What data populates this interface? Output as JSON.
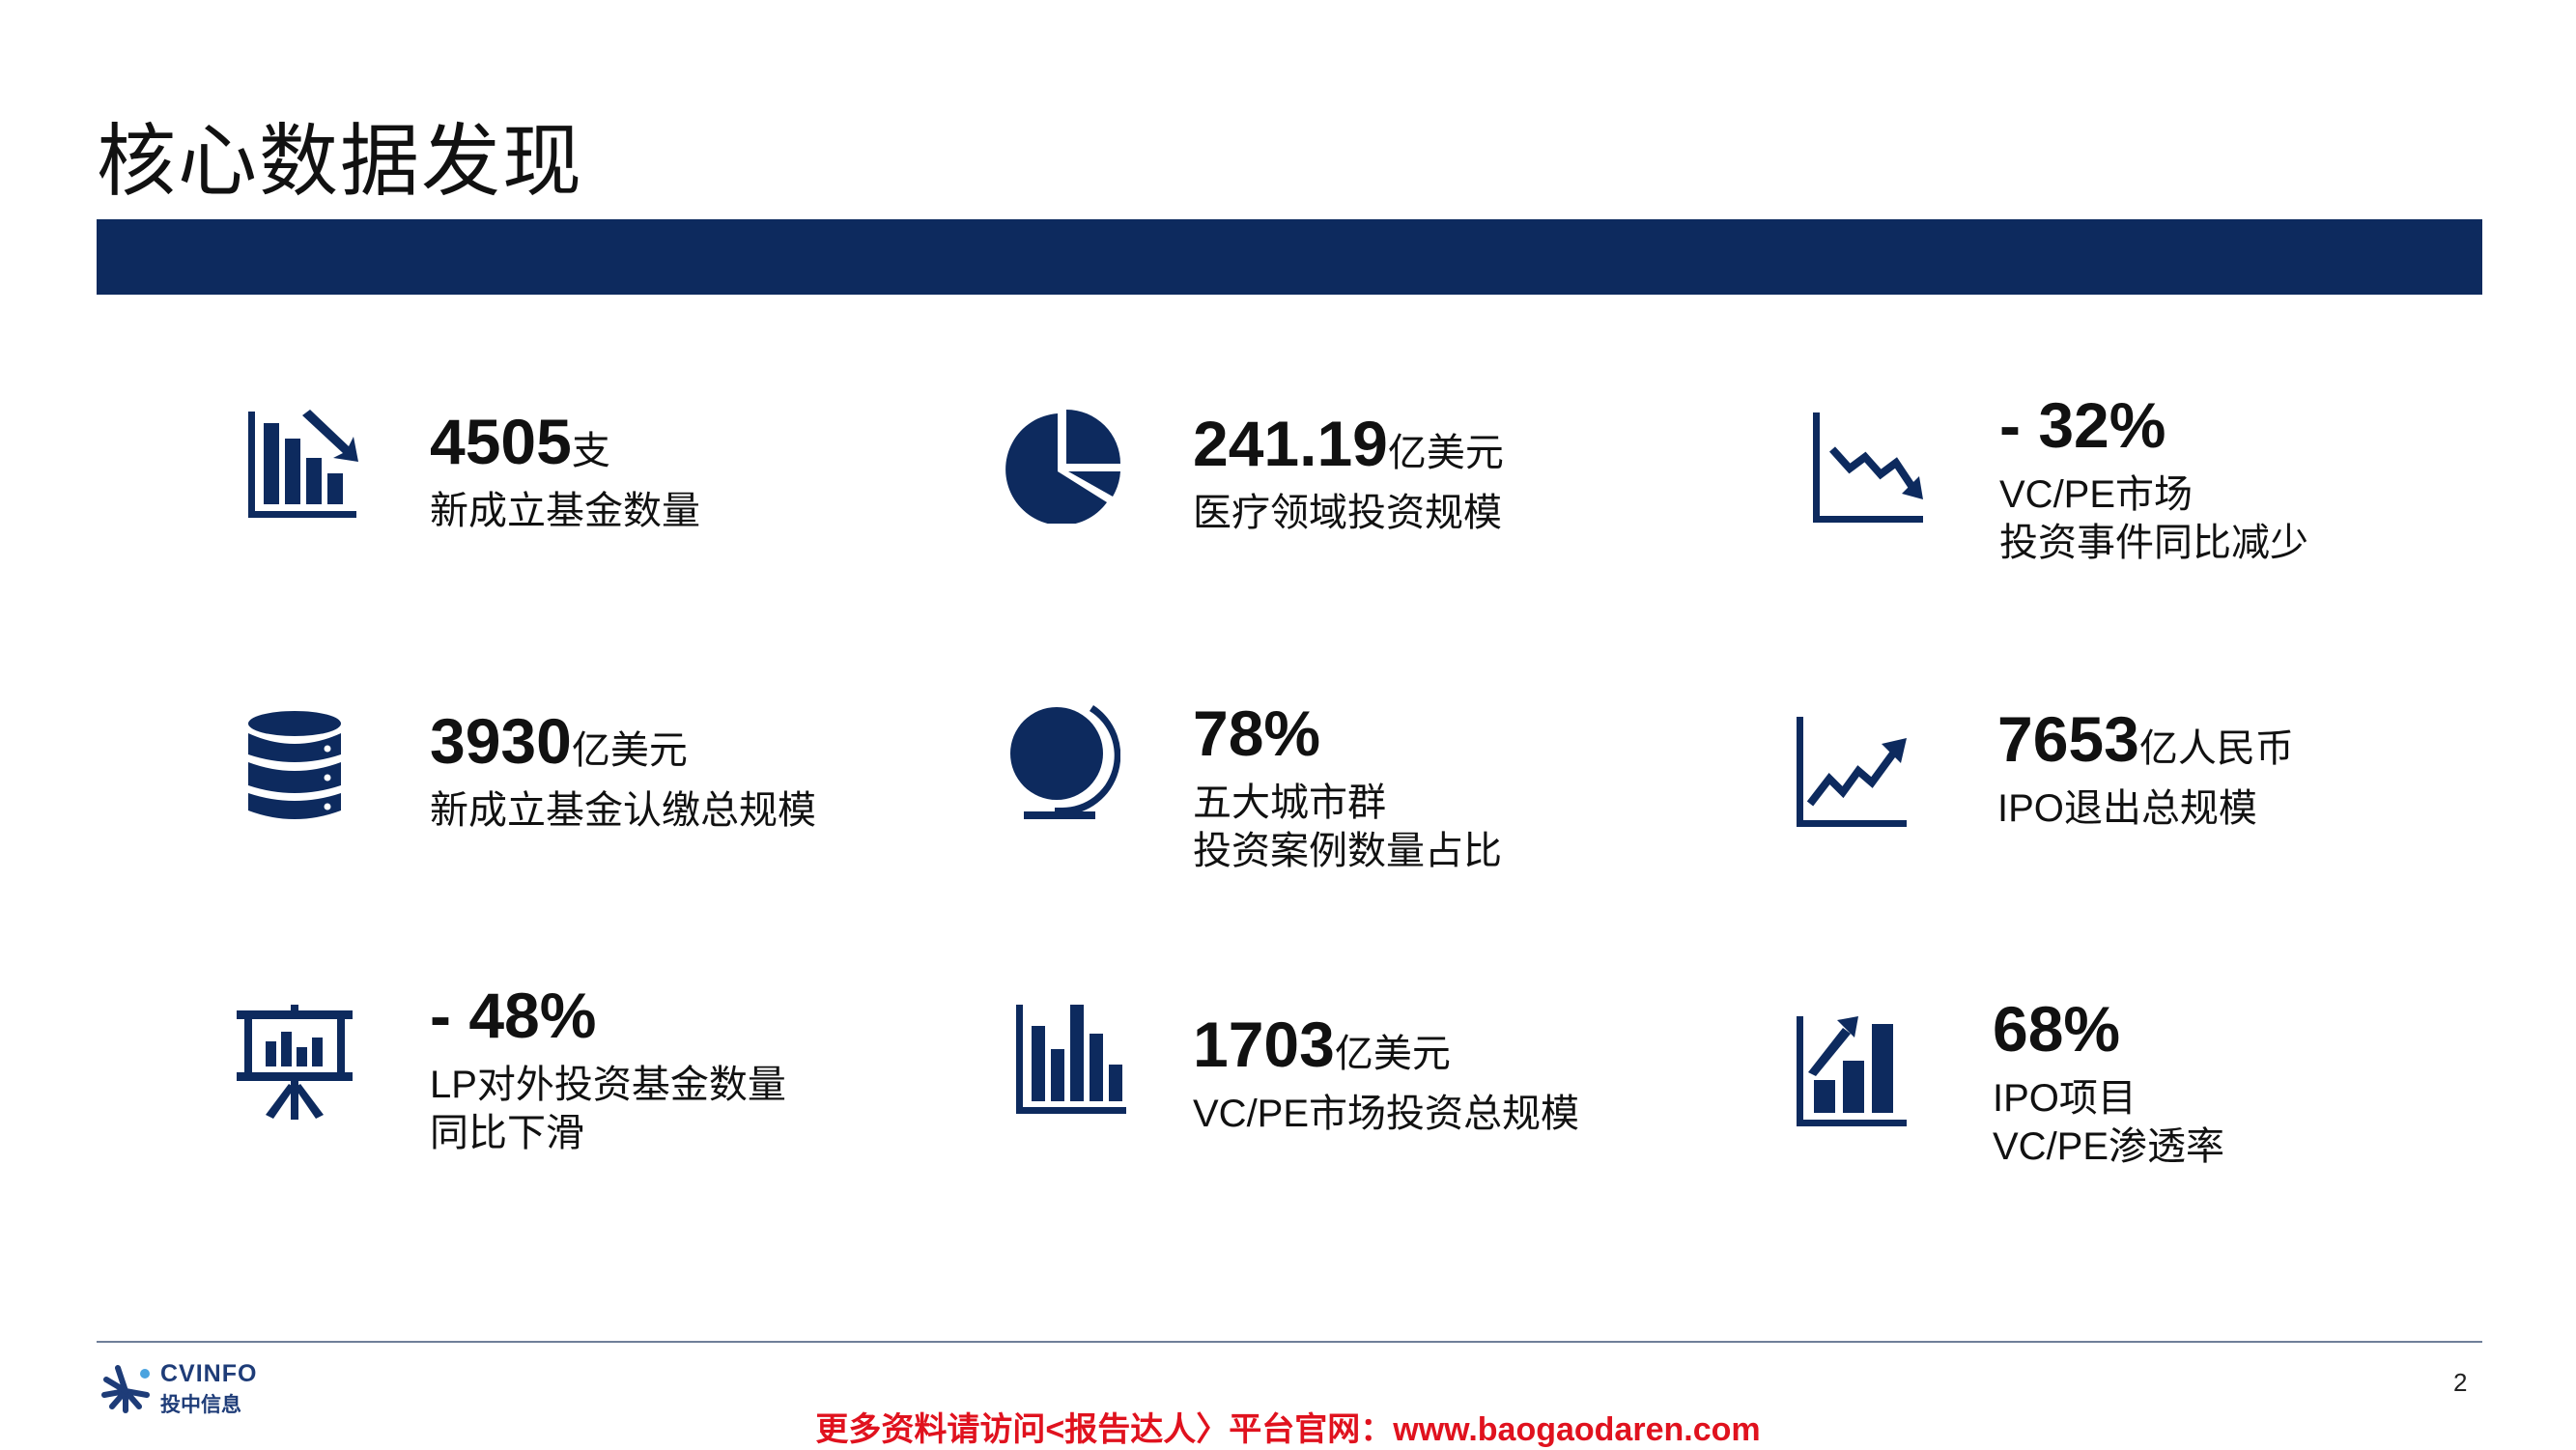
{
  "page": {
    "title": "核心数据发现",
    "page_number": "2"
  },
  "colors": {
    "accent": "#0d2a5e",
    "watermark": "#e0121e"
  },
  "stats": [
    {
      "icon": "bar-chart-down-arrow-icon",
      "number": "4505",
      "unit": "支",
      "desc1": "新成立基金数量",
      "desc2": ""
    },
    {
      "icon": "pie-chart-icon",
      "number": "241.19",
      "unit": "亿美元",
      "desc1": "医疗领域投资规模",
      "desc2": ""
    },
    {
      "icon": "line-chart-down-icon",
      "number": "- 32%",
      "unit": "",
      "desc1": "VC/PE市场",
      "desc2": "投资事件同比减少"
    },
    {
      "icon": "database-icon",
      "number": "3930",
      "unit": "亿美元",
      "desc1": "新成立基金认缴总规模",
      "desc2": ""
    },
    {
      "icon": "globe-icon",
      "number": "78%",
      "unit": "",
      "desc1": "五大城市群",
      "desc2": "投资案例数量占比"
    },
    {
      "icon": "line-chart-up-icon",
      "number": "7653",
      "unit": "亿人民币",
      "desc1": "IPO退出总规模",
      "desc2": ""
    },
    {
      "icon": "presentation-board-icon",
      "number": "- 48%",
      "unit": "",
      "desc1": "LP对外投资基金数量",
      "desc2": "同比下滑"
    },
    {
      "icon": "bar-chart-icon",
      "number": "1703",
      "unit": "亿美元",
      "desc1": "VC/PE市场投资总规模",
      "desc2": ""
    },
    {
      "icon": "bar-chart-up-arrow-icon",
      "number": "68%",
      "unit": "",
      "desc1": "IPO项目",
      "desc2": "VC/PE渗透率"
    }
  ],
  "footer": {
    "logo_en": "CVINFO",
    "logo_zh": "投中信息",
    "watermark": "更多资料请访问<报告达人〉平台官网：www.baogaodaren.com"
  }
}
